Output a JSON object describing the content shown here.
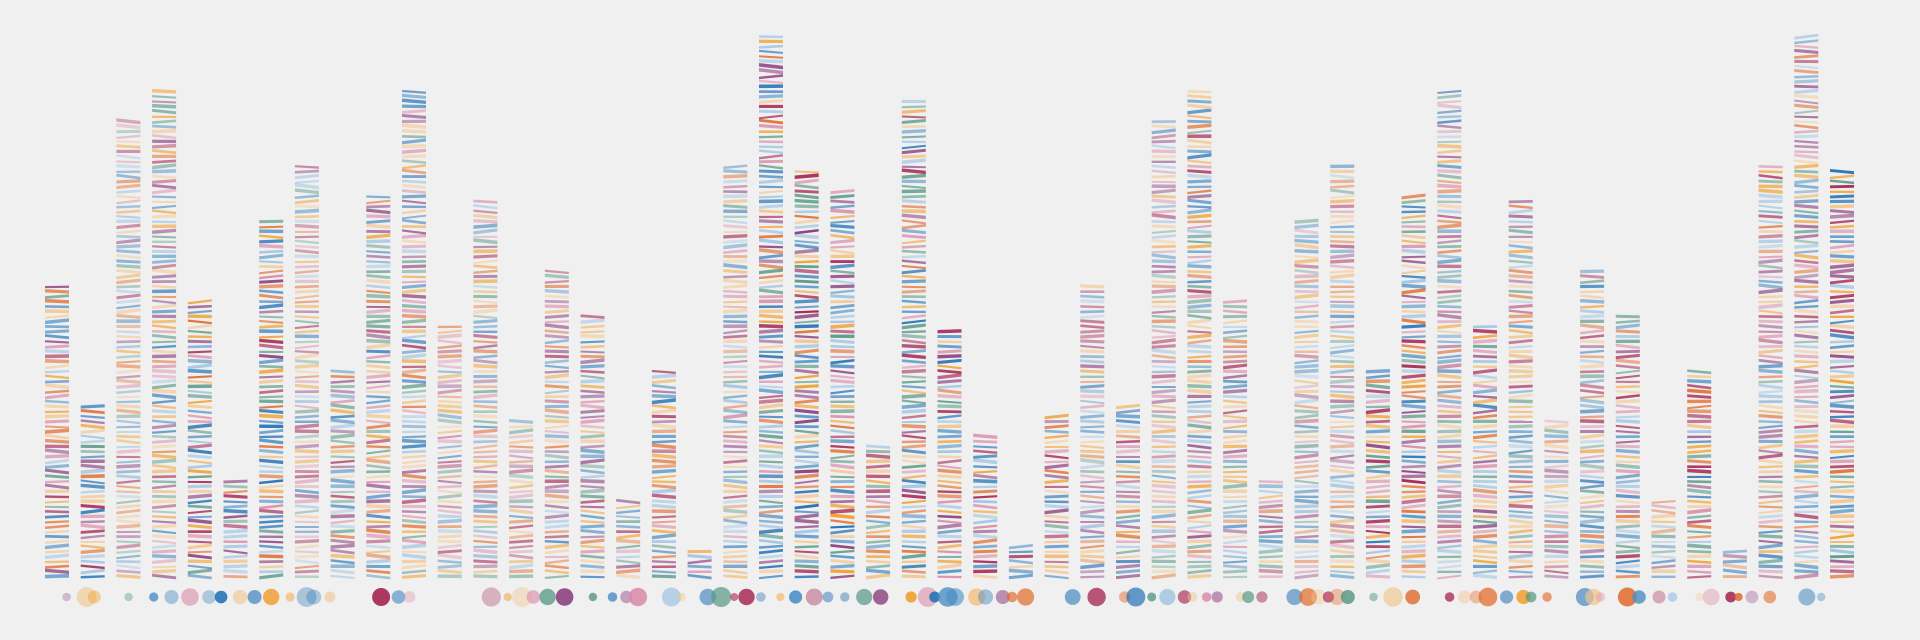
{
  "chart_data": {
    "type": "stripes",
    "palette": [
      "#1f6fb4",
      "#f0a030",
      "#a3214f",
      "#4d8fc4",
      "#f4c48a",
      "#d98ba8",
      "#8b3f7e",
      "#9cc3e2",
      "#e06a2a",
      "#5a9a86"
    ],
    "background": "#f0f0f0",
    "counts": [
      59,
      35,
      92,
      98,
      56,
      20,
      72,
      83,
      42,
      77,
      98,
      51,
      76,
      32,
      62,
      53,
      16,
      42,
      6,
      83,
      109,
      82,
      78,
      27,
      96,
      50,
      29,
      7,
      33,
      59,
      35,
      92,
      98,
      56,
      20,
      72,
      83,
      42,
      77,
      98,
      51,
      76,
      32,
      62,
      53,
      16,
      42,
      6,
      83,
      109,
      82
    ]
  }
}
